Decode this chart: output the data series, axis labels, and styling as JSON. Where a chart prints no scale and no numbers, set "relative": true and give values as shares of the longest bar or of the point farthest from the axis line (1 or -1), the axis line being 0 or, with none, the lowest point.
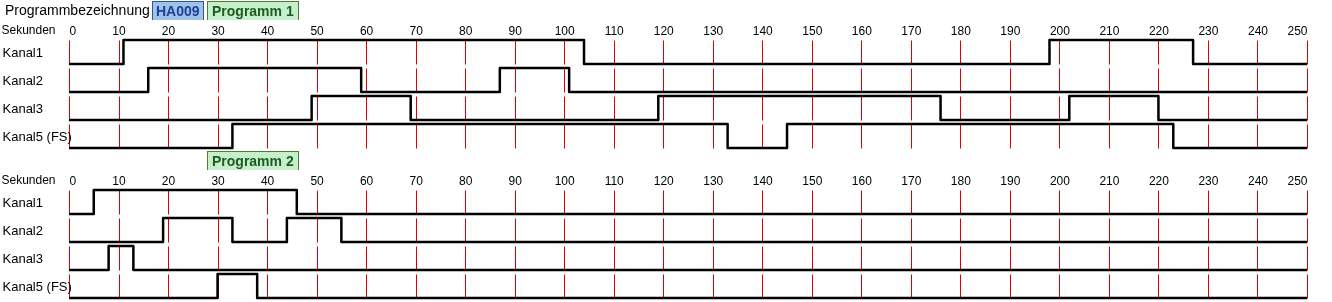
{
  "chart_data": [
    {
      "type": "step",
      "title": "Programm 1",
      "annotations": [
        "Programmbezeichnung",
        "HA009"
      ],
      "xlabel": "Sekunden",
      "ylabel": "Kanal1",
      "relative": true,
      "color": "#000000",
      "x": [
        0,
        11,
        104,
        198,
        227,
        250
      ],
      "values": [
        0,
        1,
        0,
        1,
        0,
        0
      ],
      "xlim": [
        0,
        250
      ],
      "xticks": [
        0,
        10,
        20,
        30,
        40,
        50,
        60,
        70,
        80,
        90,
        100,
        110,
        120,
        130,
        140,
        150,
        160,
        170,
        180,
        190,
        200,
        210,
        220,
        230,
        240,
        250
      ],
      "grid": "x",
      "tick_labels": "x"
    },
    {
      "type": "step",
      "ylabel": "Kanal2",
      "relative": true,
      "color": "#000000",
      "x": [
        0,
        16,
        59,
        87,
        101,
        250
      ],
      "values": [
        0,
        1,
        0,
        1,
        0,
        0
      ],
      "xlim": [
        0,
        250
      ],
      "xticks": [
        0,
        10,
        20,
        30,
        40,
        50,
        60,
        70,
        80,
        90,
        100,
        110,
        120,
        130,
        140,
        150,
        160,
        170,
        180,
        190,
        200,
        210,
        220,
        230,
        240,
        250
      ],
      "grid": "x",
      "tick_labels": false
    },
    {
      "type": "step",
      "ylabel": "Kanal3",
      "relative": true,
      "color": "#000000",
      "x": [
        0,
        49,
        69,
        119,
        176,
        202,
        220,
        250
      ],
      "values": [
        0,
        1,
        0,
        1,
        0,
        1,
        0,
        0
      ],
      "xlim": [
        0,
        250
      ],
      "xticks": [
        0,
        10,
        20,
        30,
        40,
        50,
        60,
        70,
        80,
        90,
        100,
        110,
        120,
        130,
        140,
        150,
        160,
        170,
        180,
        190,
        200,
        210,
        220,
        230,
        240,
        250
      ],
      "grid": "x",
      "tick_labels": false
    },
    {
      "type": "step",
      "ylabel": "Kanal5 (FS)",
      "relative": true,
      "color": "#000000",
      "x": [
        0,
        33,
        133,
        145,
        223,
        250
      ],
      "values": [
        0,
        1,
        0,
        1,
        0,
        0
      ],
      "xlim": [
        0,
        250
      ],
      "xticks": [
        0,
        10,
        20,
        30,
        40,
        50,
        60,
        70,
        80,
        90,
        100,
        110,
        120,
        130,
        140,
        150,
        160,
        170,
        180,
        190,
        200,
        210,
        220,
        230,
        240,
        250
      ],
      "grid": "x",
      "tick_labels": false
    },
    {
      "type": "step",
      "title": "Programm 2",
      "xlabel": "Sekunden",
      "ylabel": "Kanal1",
      "relative": true,
      "color": "#000000",
      "x": [
        0,
        5,
        46,
        250
      ],
      "values": [
        0,
        1,
        0,
        0
      ],
      "xlim": [
        0,
        250
      ],
      "xticks": [
        0,
        10,
        20,
        30,
        40,
        50,
        60,
        70,
        80,
        90,
        100,
        110,
        120,
        130,
        140,
        150,
        160,
        170,
        180,
        190,
        200,
        210,
        220,
        230,
        240,
        250
      ],
      "grid": "x",
      "tick_labels": "x"
    },
    {
      "type": "step",
      "ylabel": "Kanal2",
      "relative": true,
      "color": "#000000",
      "x": [
        0,
        19,
        33,
        44,
        55,
        250
      ],
      "values": [
        0,
        1,
        0,
        1,
        0,
        0
      ],
      "xlim": [
        0,
        250
      ],
      "xticks": [
        0,
        10,
        20,
        30,
        40,
        50,
        60,
        70,
        80,
        90,
        100,
        110,
        120,
        130,
        140,
        150,
        160,
        170,
        180,
        190,
        200,
        210,
        220,
        230,
        240,
        250
      ],
      "grid": "x",
      "tick_labels": false
    },
    {
      "type": "step",
      "ylabel": "Kanal3",
      "relative": true,
      "color": "#000000",
      "x": [
        0,
        8,
        13,
        250
      ],
      "values": [
        0,
        1,
        0,
        0
      ],
      "xlim": [
        0,
        250
      ],
      "xticks": [
        0,
        10,
        20,
        30,
        40,
        50,
        60,
        70,
        80,
        90,
        100,
        110,
        120,
        130,
        140,
        150,
        160,
        170,
        180,
        190,
        200,
        210,
        220,
        230,
        240,
        250
      ],
      "grid": "x",
      "tick_labels": false
    },
    {
      "type": "step",
      "ylabel": "Kanal5 (FS)",
      "relative": true,
      "color": "#000000",
      "x": [
        0,
        30,
        38,
        250
      ],
      "values": [
        0,
        1,
        0,
        0
      ],
      "xlim": [
        0,
        250
      ],
      "xticks": [
        0,
        10,
        20,
        30,
        40,
        50,
        60,
        70,
        80,
        90,
        100,
        110,
        120,
        130,
        140,
        150,
        160,
        170,
        180,
        190,
        200,
        210,
        220,
        230,
        240,
        250
      ],
      "grid": "x",
      "tick_labels": false
    }
  ]
}
